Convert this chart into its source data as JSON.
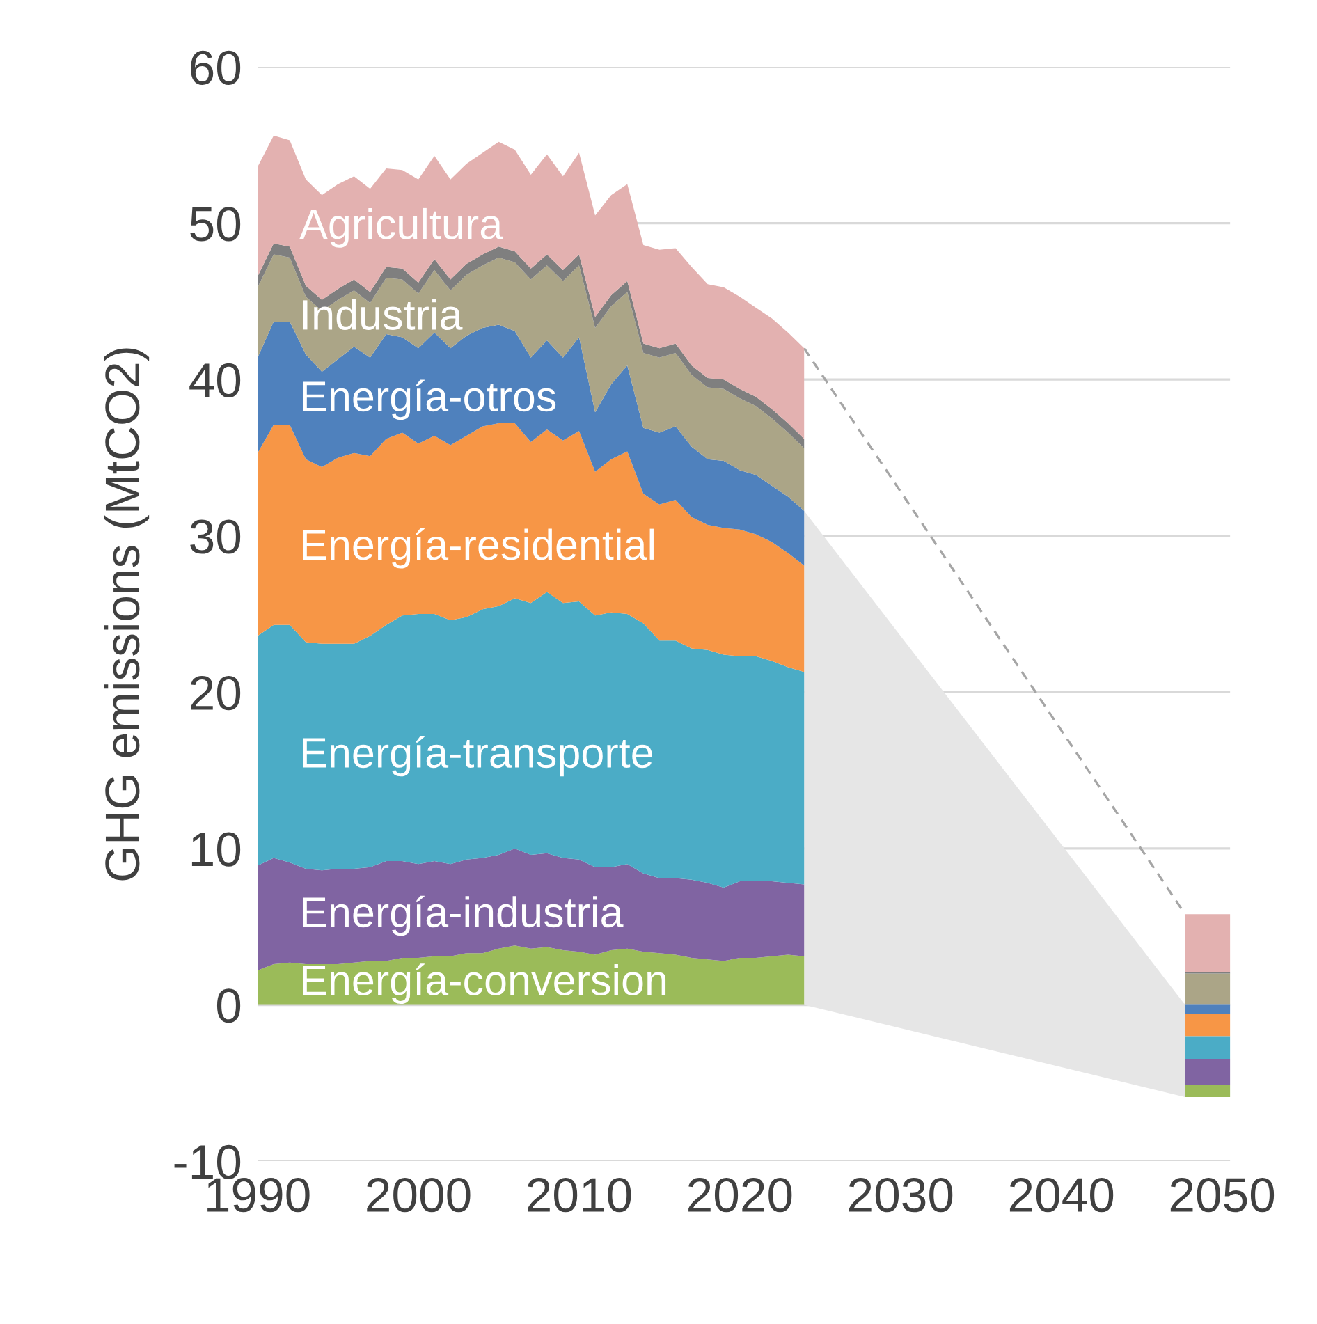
{
  "chart_data": {
    "type": "area",
    "stacked": true,
    "ylabel": "GHG emissions (MtCO2)",
    "grid": "y",
    "legend": false,
    "x": [
      1990,
      1991,
      1992,
      1993,
      1994,
      1995,
      1996,
      1997,
      1998,
      1999,
      2000,
      2001,
      2002,
      2003,
      2004,
      2005,
      2006,
      2007,
      2008,
      2009,
      2010,
      2011,
      2012,
      2013,
      2014,
      2015,
      2016,
      2017,
      2018,
      2019,
      2020,
      2021,
      2022,
      2023,
      2024
    ],
    "xlim": [
      1990,
      2050.5
    ],
    "xticks": [
      1990,
      2000,
      2010,
      2020,
      2030,
      2040,
      2050
    ],
    "ylim": [
      -10,
      60
    ],
    "yticks": [
      -10,
      0,
      10,
      20,
      30,
      40,
      50,
      60
    ],
    "series": [
      {
        "name": "Energía-conversion",
        "color": "#9bbb59",
        "values": [
          2.2,
          2.6,
          2.7,
          2.6,
          2.6,
          2.6,
          2.7,
          2.8,
          2.8,
          3.0,
          3.0,
          3.1,
          3.1,
          3.3,
          3.3,
          3.6,
          3.8,
          3.6,
          3.7,
          3.5,
          3.4,
          3.2,
          3.5,
          3.6,
          3.4,
          3.3,
          3.2,
          3.0,
          2.9,
          2.8,
          3.0,
          3.0,
          3.1,
          3.2,
          3.1
        ]
      },
      {
        "name": "Energía-industria",
        "color": "#8064a2",
        "values": [
          6.7,
          6.8,
          6.4,
          6.1,
          6.0,
          6.1,
          6.0,
          6.0,
          6.4,
          6.2,
          6.0,
          6.1,
          5.9,
          6.0,
          6.1,
          6.0,
          6.2,
          6.0,
          6.0,
          5.9,
          5.9,
          5.6,
          5.3,
          5.4,
          5.0,
          4.8,
          4.9,
          5.0,
          4.9,
          4.7,
          4.9,
          4.9,
          4.8,
          4.6,
          4.6
        ]
      },
      {
        "name": "Energía-transporte",
        "color": "#4bacc6",
        "values": [
          14.7,
          14.9,
          15.2,
          14.5,
          14.5,
          14.4,
          14.4,
          14.8,
          15.1,
          15.7,
          16.0,
          15.8,
          15.6,
          15.5,
          15.9,
          15.9,
          16.0,
          16.1,
          16.7,
          16.3,
          16.5,
          16.1,
          16.3,
          16.0,
          16.0,
          15.2,
          15.2,
          14.8,
          14.9,
          14.9,
          14.4,
          14.4,
          14.1,
          13.8,
          13.6
        ]
      },
      {
        "name": "Energía-residential",
        "color": "#f79646",
        "values": [
          11.7,
          12.8,
          12.8,
          11.7,
          11.3,
          11.9,
          12.2,
          11.5,
          11.9,
          11.7,
          10.9,
          11.4,
          11.2,
          11.6,
          11.7,
          11.7,
          11.2,
          10.3,
          10.4,
          10.4,
          10.9,
          9.2,
          9.8,
          10.4,
          8.3,
          8.7,
          9.0,
          8.4,
          8.0,
          8.1,
          8.1,
          7.8,
          7.6,
          7.3,
          6.8
        ]
      },
      {
        "name": "Energía-otros",
        "color": "#4f81bd",
        "values": [
          6.1,
          6.6,
          6.6,
          6.7,
          6.1,
          6.3,
          6.8,
          6.3,
          6.7,
          6.1,
          6.1,
          6.6,
          6.2,
          6.4,
          6.3,
          6.3,
          5.9,
          5.4,
          5.7,
          5.3,
          6.0,
          3.8,
          4.8,
          5.5,
          4.2,
          4.6,
          4.7,
          4.5,
          4.2,
          4.3,
          3.8,
          3.8,
          3.6,
          3.6,
          3.5
        ]
      },
      {
        "name": "Industria",
        "color": "#aba587",
        "values": [
          4.5,
          4.3,
          4.1,
          3.7,
          3.9,
          3.8,
          3.6,
          3.5,
          3.6,
          3.7,
          3.5,
          4.0,
          3.7,
          3.9,
          4.0,
          4.3,
          4.4,
          5.0,
          4.8,
          4.9,
          4.6,
          5.4,
          5.0,
          4.7,
          4.8,
          4.8,
          4.7,
          4.6,
          4.6,
          4.6,
          4.6,
          4.4,
          4.3,
          4.1,
          4.0
        ]
      },
      {
        "color": "#7f7f7f",
        "values": [
          0.7,
          0.7,
          0.7,
          0.7,
          0.7,
          0.7,
          0.7,
          0.7,
          0.7,
          0.7,
          0.7,
          0.7,
          0.7,
          0.7,
          0.7,
          0.7,
          0.7,
          0.7,
          0.7,
          0.7,
          0.7,
          0.7,
          0.7,
          0.7,
          0.6,
          0.6,
          0.6,
          0.6,
          0.6,
          0.6,
          0.6,
          0.6,
          0.6,
          0.6,
          0.6
        ]
      },
      {
        "name": "Agricultura",
        "color": "#e3b1b0",
        "values": [
          7.0,
          6.9,
          6.8,
          6.8,
          6.7,
          6.7,
          6.6,
          6.6,
          6.3,
          6.3,
          6.6,
          6.6,
          6.4,
          6.4,
          6.5,
          6.7,
          6.5,
          6.0,
          6.4,
          6.0,
          6.5,
          6.5,
          6.4,
          6.2,
          6.3,
          6.3,
          6.1,
          6.3,
          6.0,
          5.9,
          5.9,
          5.7,
          5.8,
          5.8,
          5.8
        ]
      },
      {
        "type": "bar",
        "x": [
          2049.1
        ],
        "color": "#aba587",
        "values": [
          2.0
        ]
      },
      {
        "type": "bar",
        "x": [
          2049.1
        ],
        "color": "#7f7f7f",
        "values": [
          0.1
        ]
      },
      {
        "type": "bar",
        "x": [
          2049.1
        ],
        "color": "#e3b1b0",
        "values": [
          3.7
        ]
      },
      {
        "type": "bar",
        "x": [
          2049.1
        ],
        "color": "#4f81bd",
        "values": [
          -0.6
        ]
      },
      {
        "type": "bar",
        "x": [
          2049.1
        ],
        "color": "#f79646",
        "values": [
          -1.4
        ]
      },
      {
        "type": "bar",
        "x": [
          2049.1
        ],
        "color": "#4bacc6",
        "values": [
          -1.5
        ]
      },
      {
        "type": "bar",
        "x": [
          2049.1
        ],
        "color": "#8064a2",
        "values": [
          -1.6
        ]
      },
      {
        "type": "bar",
        "x": [
          2049.1
        ],
        "color": "#9bbb59",
        "values": [
          -0.8
        ]
      },
      {
        "type": "line",
        "x": [
          2024,
          2047.7
        ],
        "color": "#a6a6a6",
        "line_style": "dashed",
        "values": [
          42.0,
          5.8
        ]
      }
    ]
  }
}
